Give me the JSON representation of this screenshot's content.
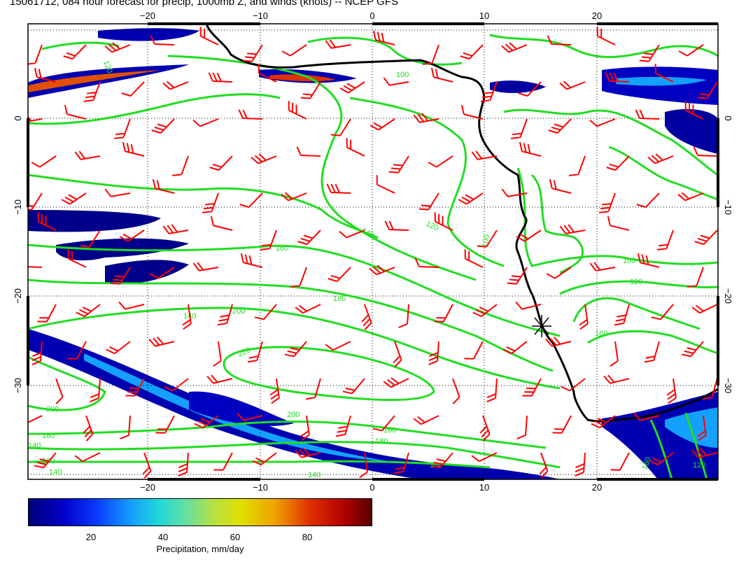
{
  "title": "15061712, 084 hour forecast for precip, 1000mb Z, and winds (knots) -- NCEP GFS",
  "map": {
    "lon_ticks": [
      "−20",
      "−10",
      "0",
      "10",
      "20"
    ],
    "lat_ticks": [
      "0",
      "−10",
      "−20",
      "−30"
    ],
    "contour_labels": [
      "120",
      "100",
      "140",
      "160",
      "180",
      "200",
      "220",
      "120",
      "100",
      "140",
      "160",
      "180",
      "200",
      "160",
      "140",
      "140",
      "140",
      "100",
      "120",
      "160",
      "100",
      "120",
      "160",
      "180",
      "200"
    ],
    "colors": {
      "contour": "#22dd22",
      "wind_barb": "#ff0000",
      "coastline": "#000000",
      "precip_low": "#00007a",
      "precip_high": "#5a0000"
    },
    "marker_icon": "asterisk-marker-icon"
  },
  "colorbar": {
    "ticks": [
      "20",
      "40",
      "60",
      "80"
    ],
    "label": "Precipitation, mm/day"
  }
}
